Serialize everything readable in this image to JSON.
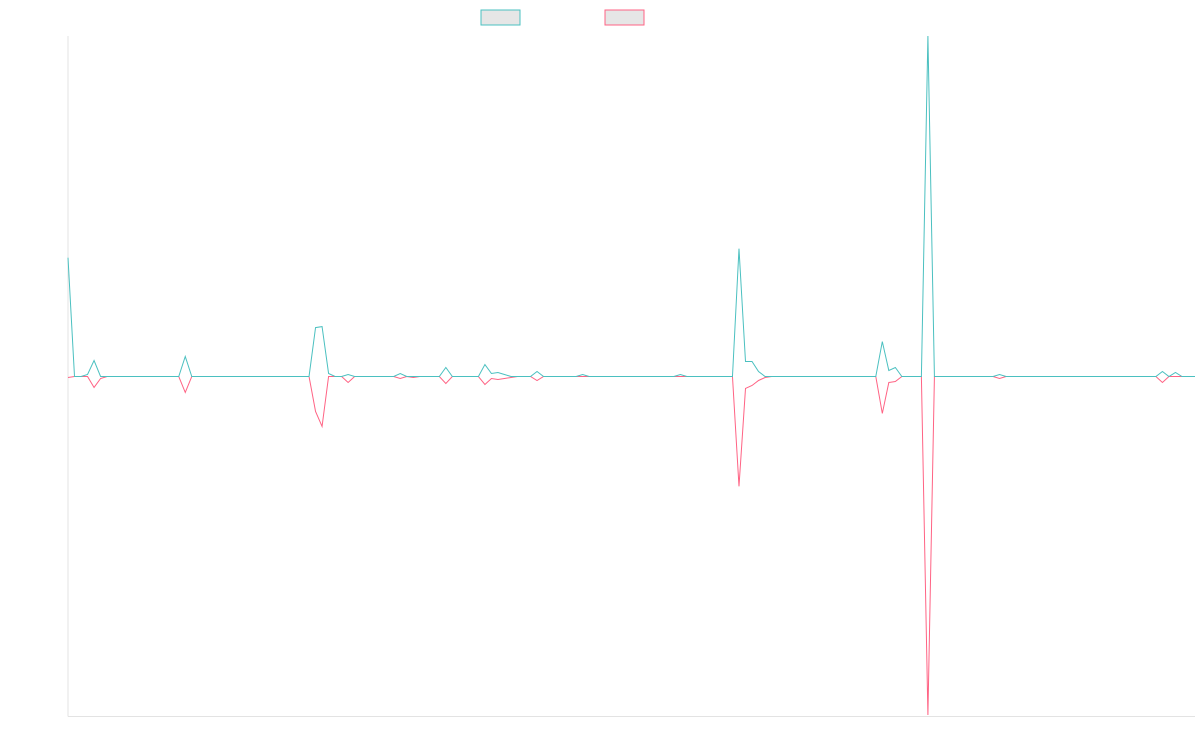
{
  "chart_data": {
    "type": "line",
    "ylim": [
      -340,
      341
    ],
    "series": [
      {
        "color": "#4bc0c0",
        "values": [
          119,
          0,
          0,
          2,
          16,
          0,
          0,
          0,
          0,
          0,
          0,
          0,
          0,
          0,
          0,
          0,
          0,
          0,
          20,
          0,
          0,
          0,
          0,
          0,
          0,
          0,
          0,
          0,
          0,
          0,
          0,
          0,
          0,
          0,
          0,
          0,
          0,
          0,
          49,
          50,
          3,
          0,
          0,
          2,
          0,
          0,
          0,
          0,
          0,
          0,
          0,
          3,
          0,
          0,
          0,
          0,
          0,
          0,
          9,
          0,
          0,
          0,
          0,
          0,
          12,
          3,
          4,
          2,
          0,
          0,
          0,
          0,
          5,
          0,
          0,
          0,
          0,
          0,
          0,
          2,
          0,
          0,
          0,
          0,
          0,
          0,
          0,
          0,
          0,
          0,
          0,
          0,
          0,
          0,
          2,
          0,
          0,
          0,
          0,
          0,
          0,
          0,
          0,
          128,
          15,
          15,
          5,
          0,
          0,
          0,
          0,
          0,
          0,
          0,
          0,
          0,
          0,
          0,
          0,
          0,
          0,
          0,
          0,
          0,
          0,
          35,
          6,
          9,
          0,
          0,
          0,
          0,
          341,
          0,
          0,
          0,
          0,
          0,
          0,
          0,
          0,
          0,
          0,
          2,
          0,
          0,
          0,
          0,
          0,
          0,
          0,
          0,
          0,
          0,
          0,
          0,
          0,
          0,
          0,
          0,
          0,
          0,
          0,
          0,
          0,
          0,
          0,
          0,
          5,
          0,
          4,
          0,
          0,
          0
        ]
      },
      {
        "color": "#ff6384",
        "values": [
          -1,
          0,
          0,
          0,
          -11,
          -2,
          0,
          0,
          0,
          0,
          0,
          0,
          0,
          0,
          0,
          0,
          0,
          0,
          -16,
          0,
          0,
          0,
          0,
          0,
          0,
          0,
          0,
          0,
          0,
          0,
          0,
          0,
          0,
          0,
          0,
          0,
          0,
          0,
          -35,
          -50,
          0,
          0,
          0,
          -6,
          0,
          0,
          0,
          0,
          0,
          0,
          0,
          -2,
          0,
          -1,
          0,
          0,
          0,
          0,
          -7,
          0,
          0,
          0,
          0,
          0,
          -8,
          -2,
          -3,
          -2,
          -1,
          0,
          0,
          0,
          -4,
          0,
          0,
          0,
          0,
          0,
          0,
          0,
          0,
          0,
          0,
          0,
          0,
          0,
          0,
          0,
          0,
          0,
          0,
          0,
          0,
          0,
          0,
          0,
          0,
          0,
          0,
          0,
          0,
          0,
          0,
          -110,
          -12,
          -9,
          -4,
          -1,
          0,
          0,
          0,
          0,
          0,
          0,
          0,
          0,
          0,
          0,
          0,
          0,
          0,
          0,
          0,
          0,
          0,
          -37,
          -6,
          -5,
          0,
          0,
          0,
          0,
          -339,
          0,
          0,
          0,
          0,
          0,
          0,
          0,
          0,
          0,
          0,
          -2,
          0,
          0,
          0,
          0,
          0,
          0,
          0,
          0,
          0,
          0,
          0,
          0,
          0,
          0,
          0,
          0,
          0,
          0,
          0,
          0,
          0,
          0,
          0,
          0,
          -6,
          0,
          0,
          0,
          0,
          0
        ]
      }
    ]
  }
}
